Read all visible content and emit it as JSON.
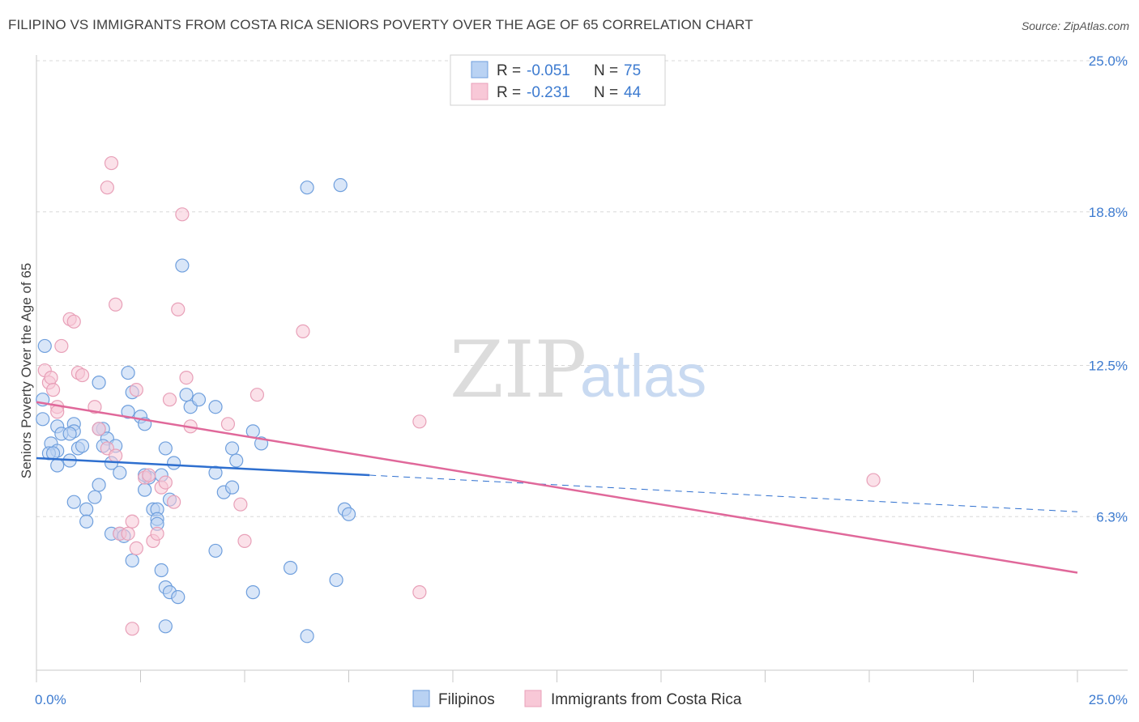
{
  "title": "FILIPINO VS IMMIGRANTS FROM COSTA RICA SENIORS POVERTY OVER THE AGE OF 65 CORRELATION CHART",
  "source": "Source: ZipAtlas.com",
  "watermark": {
    "zip": "ZIP",
    "atlas": "atlas"
  },
  "colors": {
    "blue_fill": "#b9d2f3",
    "blue_stroke": "#6f9fdd",
    "blue_line": "#2e6fcf",
    "pink_fill": "#f8c8d7",
    "pink_stroke": "#e8a0b8",
    "pink_line": "#e0689a",
    "grid": "#d8d8d8",
    "tick_text": "#3d7bd0"
  },
  "legend": {
    "rows": [
      {
        "r_label": "R =",
        "r_value": "-0.051",
        "n_label": "N =",
        "n_value": "75",
        "color": "blue"
      },
      {
        "r_label": "R =",
        "r_value": "-0.231",
        "n_label": "N =",
        "n_value": "44",
        "color": "pink"
      }
    ]
  },
  "bottom_legend": [
    "Filipinos",
    "Immigrants from Costa Rica"
  ],
  "chart_data": {
    "type": "scatter",
    "xlabel": "",
    "ylabel": "Seniors Poverty Over the Age of 65",
    "xlim": [
      0,
      25
    ],
    "ylim": [
      0,
      25.5
    ],
    "x_tick_labels": [
      "0.0%",
      "25.0%"
    ],
    "y_ticks": [
      6.3,
      12.5,
      18.8,
      25.0
    ],
    "y_tick_labels": [
      "6.3%",
      "12.5%",
      "18.8%",
      "25.0%"
    ],
    "grid": "horizontal dashed",
    "legend_position": "top-center",
    "series": [
      {
        "name": "Filipinos",
        "color": "blue",
        "trend": {
          "x_start": 0,
          "y_start": 8.7,
          "x_solid_end": 8.0,
          "y_solid_end": 8.0,
          "x_end": 25,
          "y_end": 6.5
        },
        "points": [
          [
            0.2,
            13.3
          ],
          [
            0.15,
            11.1
          ],
          [
            0.15,
            10.3
          ],
          [
            0.35,
            9.3
          ],
          [
            0.5,
            10.0
          ],
          [
            0.5,
            9.0
          ],
          [
            0.3,
            8.9
          ],
          [
            0.5,
            8.4
          ],
          [
            0.8,
            8.6
          ],
          [
            0.6,
            9.7
          ],
          [
            0.9,
            10.1
          ],
          [
            0.9,
            9.8
          ],
          [
            1.0,
            9.1
          ],
          [
            1.1,
            9.2
          ],
          [
            1.5,
            11.8
          ],
          [
            1.6,
            9.9
          ],
          [
            1.7,
            9.5
          ],
          [
            1.8,
            8.5
          ],
          [
            1.9,
            9.2
          ],
          [
            2.0,
            8.1
          ],
          [
            1.5,
            7.6
          ],
          [
            1.4,
            7.1
          ],
          [
            0.9,
            6.9
          ],
          [
            1.2,
            6.6
          ],
          [
            1.2,
            6.1
          ],
          [
            1.8,
            5.6
          ],
          [
            2.0,
            5.6
          ],
          [
            2.1,
            5.5
          ],
          [
            2.2,
            10.6
          ],
          [
            2.2,
            12.2
          ],
          [
            2.3,
            11.4
          ],
          [
            2.5,
            10.4
          ],
          [
            2.6,
            10.1
          ],
          [
            2.7,
            7.9
          ],
          [
            2.6,
            7.4
          ],
          [
            2.8,
            6.6
          ],
          [
            2.9,
            6.6
          ],
          [
            2.9,
            6.2
          ],
          [
            2.9,
            6.0
          ],
          [
            2.3,
            4.5
          ],
          [
            3.0,
            8.0
          ],
          [
            3.1,
            9.1
          ],
          [
            3.3,
            8.5
          ],
          [
            3.2,
            7.0
          ],
          [
            3.0,
            4.1
          ],
          [
            3.1,
            3.4
          ],
          [
            3.2,
            3.2
          ],
          [
            3.4,
            3.0
          ],
          [
            3.5,
            16.6
          ],
          [
            3.6,
            11.3
          ],
          [
            3.7,
            10.8
          ],
          [
            3.9,
            11.1
          ],
          [
            4.3,
            4.9
          ],
          [
            4.3,
            8.1
          ],
          [
            4.5,
            7.3
          ],
          [
            4.7,
            7.5
          ],
          [
            4.7,
            9.1
          ],
          [
            4.8,
            8.6
          ],
          [
            4.3,
            10.8
          ],
          [
            5.2,
            9.8
          ],
          [
            5.2,
            3.2
          ],
          [
            5.4,
            9.3
          ],
          [
            6.1,
            4.2
          ],
          [
            6.5,
            1.4
          ],
          [
            7.2,
            3.7
          ],
          [
            6.5,
            19.8
          ],
          [
            7.3,
            19.9
          ],
          [
            7.4,
            6.6
          ],
          [
            7.5,
            6.4
          ],
          [
            2.6,
            8.0
          ],
          [
            3.1,
            1.8
          ],
          [
            0.4,
            8.9
          ],
          [
            0.8,
            9.7
          ],
          [
            1.5,
            9.9
          ],
          [
            1.6,
            9.2
          ]
        ]
      },
      {
        "name": "Immigrants from Costa Rica",
        "color": "pink",
        "trend": {
          "x_start": 0,
          "y_start": 11.0,
          "x_end": 25,
          "y_end": 4.0
        },
        "points": [
          [
            0.2,
            12.3
          ],
          [
            0.3,
            11.8
          ],
          [
            0.35,
            12.0
          ],
          [
            0.4,
            11.5
          ],
          [
            0.5,
            10.8
          ],
          [
            0.5,
            10.6
          ],
          [
            0.6,
            13.3
          ],
          [
            0.8,
            14.4
          ],
          [
            0.9,
            14.3
          ],
          [
            1.0,
            12.2
          ],
          [
            1.1,
            12.1
          ],
          [
            1.4,
            10.8
          ],
          [
            1.5,
            9.9
          ],
          [
            1.7,
            9.1
          ],
          [
            1.9,
            8.8
          ],
          [
            1.9,
            15.0
          ],
          [
            2.0,
            5.6
          ],
          [
            2.2,
            5.6
          ],
          [
            2.3,
            6.1
          ],
          [
            2.4,
            5.0
          ],
          [
            2.4,
            11.5
          ],
          [
            2.6,
            7.9
          ],
          [
            2.7,
            8.0
          ],
          [
            2.8,
            5.3
          ],
          [
            2.9,
            5.6
          ],
          [
            3.0,
            7.5
          ],
          [
            3.1,
            7.7
          ],
          [
            3.2,
            11.1
          ],
          [
            3.3,
            6.9
          ],
          [
            3.4,
            14.8
          ],
          [
            3.5,
            18.7
          ],
          [
            3.6,
            12.0
          ],
          [
            3.7,
            10.0
          ],
          [
            4.6,
            10.1
          ],
          [
            4.9,
            6.8
          ],
          [
            5.0,
            5.3
          ],
          [
            5.3,
            11.3
          ],
          [
            6.4,
            13.9
          ],
          [
            9.2,
            10.2
          ],
          [
            9.2,
            3.2
          ],
          [
            1.8,
            20.8
          ],
          [
            1.7,
            19.8
          ],
          [
            2.3,
            1.7
          ],
          [
            20.1,
            7.8
          ]
        ]
      }
    ]
  }
}
